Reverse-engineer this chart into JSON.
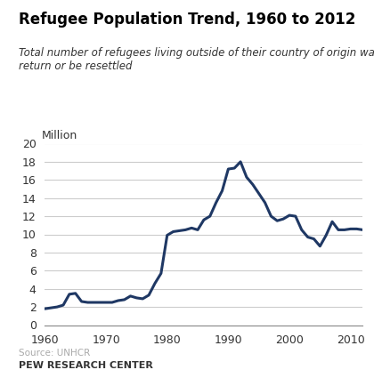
{
  "title": "Refugee Population Trend, 1960 to 2012",
  "subtitle": "Total number of refugees living outside of their country of origin waiting to\nreturn or be resettled",
  "ylabel": "Million",
  "source_text": "Source: UNHCR",
  "footer_text": "PEW RESEARCH CENTER",
  "line_color": "#1f3864",
  "background_color": "#ffffff",
  "xlim": [
    1960,
    2012
  ],
  "ylim": [
    0,
    20
  ],
  "yticks": [
    0,
    2,
    4,
    6,
    8,
    10,
    12,
    14,
    16,
    18,
    20
  ],
  "xticks": [
    1960,
    1970,
    1980,
    1990,
    2000,
    2010
  ],
  "data": [
    [
      1960,
      1.8
    ],
    [
      1961,
      1.9
    ],
    [
      1962,
      2.0
    ],
    [
      1963,
      2.2
    ],
    [
      1964,
      3.4
    ],
    [
      1965,
      3.5
    ],
    [
      1966,
      2.6
    ],
    [
      1967,
      2.5
    ],
    [
      1968,
      2.5
    ],
    [
      1969,
      2.5
    ],
    [
      1970,
      2.5
    ],
    [
      1971,
      2.5
    ],
    [
      1972,
      2.7
    ],
    [
      1973,
      2.8
    ],
    [
      1974,
      3.2
    ],
    [
      1975,
      3.0
    ],
    [
      1976,
      2.9
    ],
    [
      1977,
      3.3
    ],
    [
      1978,
      4.6
    ],
    [
      1979,
      5.7
    ],
    [
      1980,
      9.9
    ],
    [
      1981,
      10.3
    ],
    [
      1982,
      10.4
    ],
    [
      1983,
      10.5
    ],
    [
      1984,
      10.7
    ],
    [
      1985,
      10.5
    ],
    [
      1986,
      11.6
    ],
    [
      1987,
      12.0
    ],
    [
      1988,
      13.5
    ],
    [
      1989,
      14.8
    ],
    [
      1990,
      17.2
    ],
    [
      1991,
      17.3
    ],
    [
      1992,
      18.0
    ],
    [
      1993,
      16.3
    ],
    [
      1994,
      15.5
    ],
    [
      1995,
      14.5
    ],
    [
      1996,
      13.5
    ],
    [
      1997,
      12.0
    ],
    [
      1998,
      11.5
    ],
    [
      1999,
      11.7
    ],
    [
      2000,
      12.1
    ],
    [
      2001,
      12.0
    ],
    [
      2002,
      10.5
    ],
    [
      2003,
      9.7
    ],
    [
      2004,
      9.5
    ],
    [
      2005,
      8.7
    ],
    [
      2006,
      9.9
    ],
    [
      2007,
      11.4
    ],
    [
      2008,
      10.5
    ],
    [
      2009,
      10.5
    ],
    [
      2010,
      10.6
    ],
    [
      2011,
      10.6
    ],
    [
      2012,
      10.5
    ]
  ]
}
